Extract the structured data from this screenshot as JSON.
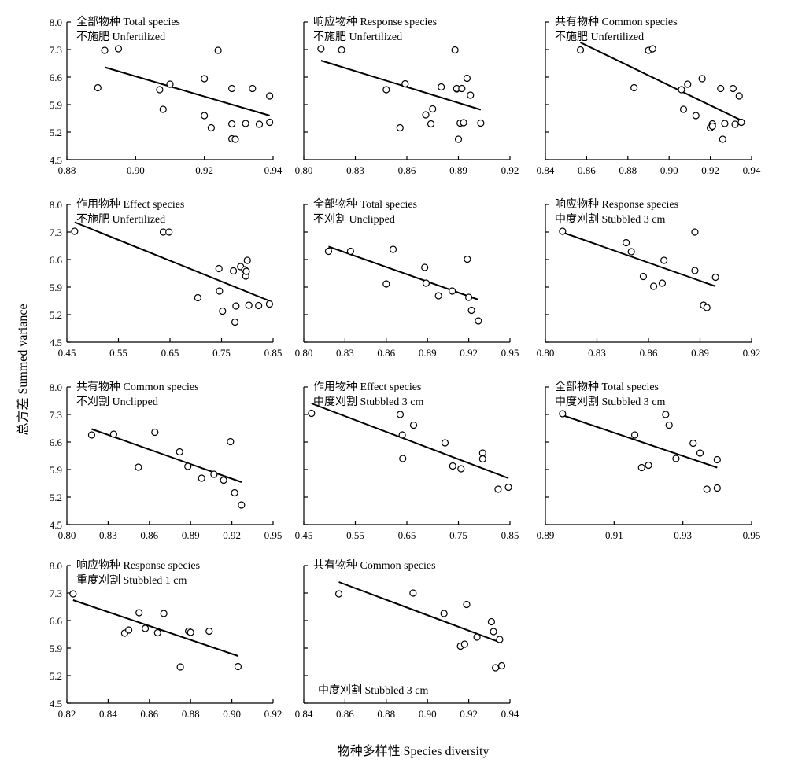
{
  "figure": {
    "ylabel": "总方差 Summed variance",
    "xlabel": "物种多样性 Species diversity"
  },
  "chart_data": [
    {
      "type": "scatter",
      "title_lines": [
        "全部物种 Total species",
        "不施肥 Unfertilized"
      ],
      "ylim": [
        4.5,
        8.0
      ],
      "yticks": [
        "4.5",
        "5.2",
        "5.9",
        "6.6",
        "7.3",
        "8.0"
      ],
      "xlim": [
        0.88,
        0.94
      ],
      "xticks": [
        "0.88",
        "0.90",
        "0.92",
        "0.94"
      ],
      "x": [
        0.889,
        0.891,
        0.895,
        0.907,
        0.908,
        0.91,
        0.92,
        0.92,
        0.922,
        0.924,
        0.928,
        0.928,
        0.928,
        0.929,
        0.932,
        0.934,
        0.936,
        0.939,
        0.939
      ],
      "y": [
        6.33,
        7.28,
        7.32,
        6.28,
        5.78,
        6.42,
        6.56,
        5.62,
        5.31,
        7.28,
        6.31,
        5.41,
        5.03,
        5.02,
        5.42,
        6.31,
        5.4,
        6.12,
        5.45
      ],
      "fit": [
        [
          0.891,
          6.85
        ],
        [
          0.939,
          5.62
        ]
      ]
    },
    {
      "type": "scatter",
      "title_lines": [
        "响应物种 Response species",
        "不施肥 Unfertilized"
      ],
      "ylim": [
        4.5,
        8.0
      ],
      "yticks": [
        "4.5",
        "5.2",
        "5.9",
        "6.6",
        "7.3",
        "8.0"
      ],
      "xlim": [
        0.8,
        0.92
      ],
      "xticks": [
        "0.80",
        "0.83",
        "0.86",
        "0.89",
        "0.92"
      ],
      "x": [
        0.81,
        0.822,
        0.848,
        0.856,
        0.859,
        0.871,
        0.874,
        0.875,
        0.88,
        0.888,
        0.889,
        0.889,
        0.89,
        0.891,
        0.892,
        0.893,
        0.895,
        0.897,
        0.903
      ],
      "y": [
        7.32,
        7.29,
        6.28,
        5.31,
        6.43,
        5.64,
        5.41,
        5.79,
        6.35,
        7.29,
        6.3,
        6.31,
        5.02,
        5.43,
        6.31,
        5.44,
        6.57,
        6.14,
        5.43
      ],
      "fit": [
        [
          0.81,
          7.02
        ],
        [
          0.903,
          5.77
        ]
      ]
    },
    {
      "type": "scatter",
      "title_lines": [
        "共有物种  Common species",
        "不施肥 Unfertilized"
      ],
      "ylim": [
        4.5,
        8.0
      ],
      "yticks": [
        "4.5",
        "5.2",
        "5.9",
        "6.6",
        "7.3",
        "8.0"
      ],
      "xlim": [
        0.84,
        0.94
      ],
      "xticks": [
        "0.84",
        "0.86",
        "0.88",
        "0.90",
        "0.92",
        "0.94"
      ],
      "x": [
        0.857,
        0.883,
        0.89,
        0.892,
        0.906,
        0.907,
        0.909,
        0.913,
        0.916,
        0.92,
        0.921,
        0.921,
        0.925,
        0.926,
        0.927,
        0.931,
        0.932,
        0.934,
        0.935
      ],
      "y": [
        7.29,
        6.33,
        7.28,
        7.32,
        6.28,
        5.78,
        6.42,
        5.62,
        6.56,
        5.31,
        5.41,
        5.35,
        6.31,
        5.02,
        5.42,
        6.31,
        5.4,
        6.12,
        5.45
      ],
      "fit": [
        [
          0.857,
          7.48
        ],
        [
          0.935,
          5.5
        ]
      ]
    },
    {
      "type": "scatter",
      "title_lines": [
        "作用物种 Effect species",
        "不施肥 Unfertilized"
      ],
      "ylim": [
        4.5,
        8.0
      ],
      "yticks": [
        "4.5",
        "5.2",
        "5.9",
        "6.6",
        "7.3",
        "8.0"
      ],
      "xlim": [
        0.45,
        0.85
      ],
      "xticks": [
        "0.45",
        "0.55",
        "0.65",
        "0.75",
        "0.85"
      ],
      "x": [
        0.465,
        0.637,
        0.648,
        0.704,
        0.745,
        0.746,
        0.752,
        0.773,
        0.776,
        0.778,
        0.787,
        0.795,
        0.797,
        0.798,
        0.8,
        0.803,
        0.822,
        0.843
      ],
      "y": [
        7.32,
        7.3,
        7.3,
        5.63,
        6.37,
        5.8,
        5.29,
        6.31,
        5.01,
        5.42,
        6.42,
        6.34,
        6.18,
        6.3,
        6.58,
        5.44,
        5.43,
        5.47
      ],
      "fit": [
        [
          0.465,
          7.55
        ],
        [
          0.843,
          5.55
        ]
      ]
    },
    {
      "type": "scatter",
      "title_lines": [
        "全部物种 Total species",
        "不刈割 Unclipped"
      ],
      "ylim": [
        4.5,
        8.0
      ],
      "yticks": [
        "4.5",
        "5.2",
        "5.9",
        "6.6",
        "7.3",
        "8.0"
      ],
      "xlim": [
        0.8,
        0.95
      ],
      "xticks": [
        "0.80",
        "0.83",
        "0.86",
        "0.89",
        "0.92",
        "0.95"
      ],
      "x": [
        0.818,
        0.834,
        0.86,
        0.865,
        0.888,
        0.889,
        0.898,
        0.908,
        0.919,
        0.92,
        0.922,
        0.927
      ],
      "y": [
        6.81,
        6.81,
        5.98,
        6.86,
        6.4,
        6.0,
        5.68,
        5.8,
        6.61,
        5.64,
        5.31,
        5.04
      ],
      "fit": [
        [
          0.818,
          6.93
        ],
        [
          0.927,
          5.58
        ]
      ]
    },
    {
      "type": "scatter",
      "title_lines": [
        "响应物种 Response species",
        "中度刈割 Stubbled 3 cm"
      ],
      "ylim": [
        4.5,
        8.0
      ],
      "yticks": [
        "4.5",
        "5.2",
        "5.9",
        "6.6",
        "7.3",
        "8.0"
      ],
      "xlim": [
        0.8,
        0.92
      ],
      "xticks": [
        "0.80",
        "0.83",
        "0.86",
        "0.89",
        "0.92"
      ],
      "x": [
        0.81,
        0.847,
        0.85,
        0.857,
        0.863,
        0.868,
        0.869,
        0.887,
        0.887,
        0.892,
        0.894,
        0.899
      ],
      "y": [
        7.32,
        7.03,
        6.8,
        6.17,
        5.92,
        6.0,
        6.58,
        7.3,
        6.32,
        5.44,
        5.38,
        6.15
      ],
      "fit": [
        [
          0.81,
          7.29
        ],
        [
          0.899,
          5.92
        ]
      ]
    },
    {
      "type": "scatter",
      "title_lines": [
        "共有物种  Common species",
        "不刈割 Unclipped"
      ],
      "ylim": [
        4.5,
        8.0
      ],
      "yticks": [
        "4.5",
        "5.2",
        "5.9",
        "6.6",
        "7.3",
        "8.0"
      ],
      "xlim": [
        0.8,
        0.95
      ],
      "xticks": [
        "0.80",
        "0.83",
        "0.86",
        "0.89",
        "0.92",
        "0.95"
      ],
      "x": [
        0.818,
        0.834,
        0.852,
        0.864,
        0.882,
        0.888,
        0.898,
        0.907,
        0.914,
        0.919,
        0.922,
        0.927
      ],
      "y": [
        6.78,
        6.8,
        5.96,
        6.85,
        6.35,
        5.98,
        5.68,
        5.78,
        5.63,
        6.61,
        5.31,
        5.0
      ],
      "fit": [
        [
          0.818,
          6.93
        ],
        [
          0.927,
          5.58
        ]
      ]
    },
    {
      "type": "scatter",
      "title_lines": [
        "作用物种 Effect species",
        "中度刈割 Stubbled 3 cm"
      ],
      "ylim": [
        4.5,
        8.0
      ],
      "yticks": [
        "4.5",
        "5.2",
        "5.9",
        "6.6",
        "7.3",
        "8.0"
      ],
      "xlim": [
        0.45,
        0.85
      ],
      "xticks": [
        "0.45",
        "0.55",
        "0.65",
        "0.75",
        "0.85"
      ],
      "x": [
        0.465,
        0.637,
        0.641,
        0.642,
        0.663,
        0.724,
        0.739,
        0.755,
        0.797,
        0.797,
        0.827,
        0.847
      ],
      "y": [
        7.33,
        7.3,
        6.78,
        6.18,
        7.03,
        6.58,
        5.99,
        5.92,
        6.32,
        6.17,
        5.4,
        5.45
      ],
      "fit": [
        [
          0.465,
          7.58
        ],
        [
          0.847,
          5.68
        ]
      ]
    },
    {
      "type": "scatter",
      "title_lines": [
        "全部物种 Total species",
        "中度刈割 Stubbled 3 cm"
      ],
      "ylim": [
        4.5,
        8.0
      ],
      "yticks": [
        "4.5",
        "5.2",
        "5.9",
        "6.6",
        "7.3",
        "8.0"
      ],
      "xlim": [
        0.89,
        0.95
      ],
      "xticks": [
        "0.89",
        "0.91",
        "0.93",
        "0.95"
      ],
      "x": [
        0.895,
        0.916,
        0.918,
        0.92,
        0.925,
        0.926,
        0.928,
        0.933,
        0.935,
        0.937,
        0.94,
        0.94
      ],
      "y": [
        7.32,
        6.78,
        5.95,
        6.01,
        7.3,
        7.03,
        6.18,
        6.57,
        6.32,
        5.4,
        5.43,
        6.15
      ],
      "fit": [
        [
          0.895,
          7.28
        ],
        [
          0.94,
          5.95
        ]
      ]
    },
    {
      "type": "scatter",
      "title_lines": [
        "响应物种 Response species",
        "重度刈割 Stubbled 1 cm"
      ],
      "ylim": [
        4.5,
        8.0
      ],
      "yticks": [
        "4.5",
        "5.2",
        "5.9",
        "6.6",
        "7.3",
        "8.0"
      ],
      "xlim": [
        0.82,
        0.92
      ],
      "xticks": [
        "0.82",
        "0.84",
        "0.86",
        "0.88",
        "0.90",
        "0.92"
      ],
      "x": [
        0.823,
        0.848,
        0.85,
        0.855,
        0.858,
        0.864,
        0.867,
        0.875,
        0.879,
        0.88,
        0.889,
        0.903
      ],
      "y": [
        7.28,
        6.28,
        6.36,
        6.8,
        6.4,
        6.29,
        6.78,
        5.42,
        6.33,
        6.3,
        6.33,
        5.43
      ],
      "fit": [
        [
          0.823,
          7.12
        ],
        [
          0.903,
          5.7
        ]
      ]
    },
    {
      "type": "scatter",
      "title_lines": [
        "共有物种  Common species"
      ],
      "note": "中度刈割  Stubbled 3 cm",
      "ylim": [
        4.5,
        8.0
      ],
      "yticks": [
        "4.5",
        "5.2",
        "5.9",
        "6.6",
        "7.3",
        "8.0"
      ],
      "xlim": [
        0.84,
        0.94
      ],
      "xticks": [
        "0.84",
        "0.86",
        "0.88",
        "0.90",
        "0.92",
        "0.94"
      ],
      "x": [
        0.857,
        0.893,
        0.908,
        0.916,
        0.918,
        0.919,
        0.924,
        0.931,
        0.932,
        0.933,
        0.935,
        0.936
      ],
      "y": [
        7.28,
        7.3,
        6.78,
        5.95,
        6.0,
        7.01,
        6.18,
        6.57,
        6.32,
        5.4,
        6.12,
        5.45
      ],
      "fit": [
        [
          0.857,
          7.58
        ],
        [
          0.936,
          6.03
        ]
      ]
    }
  ]
}
